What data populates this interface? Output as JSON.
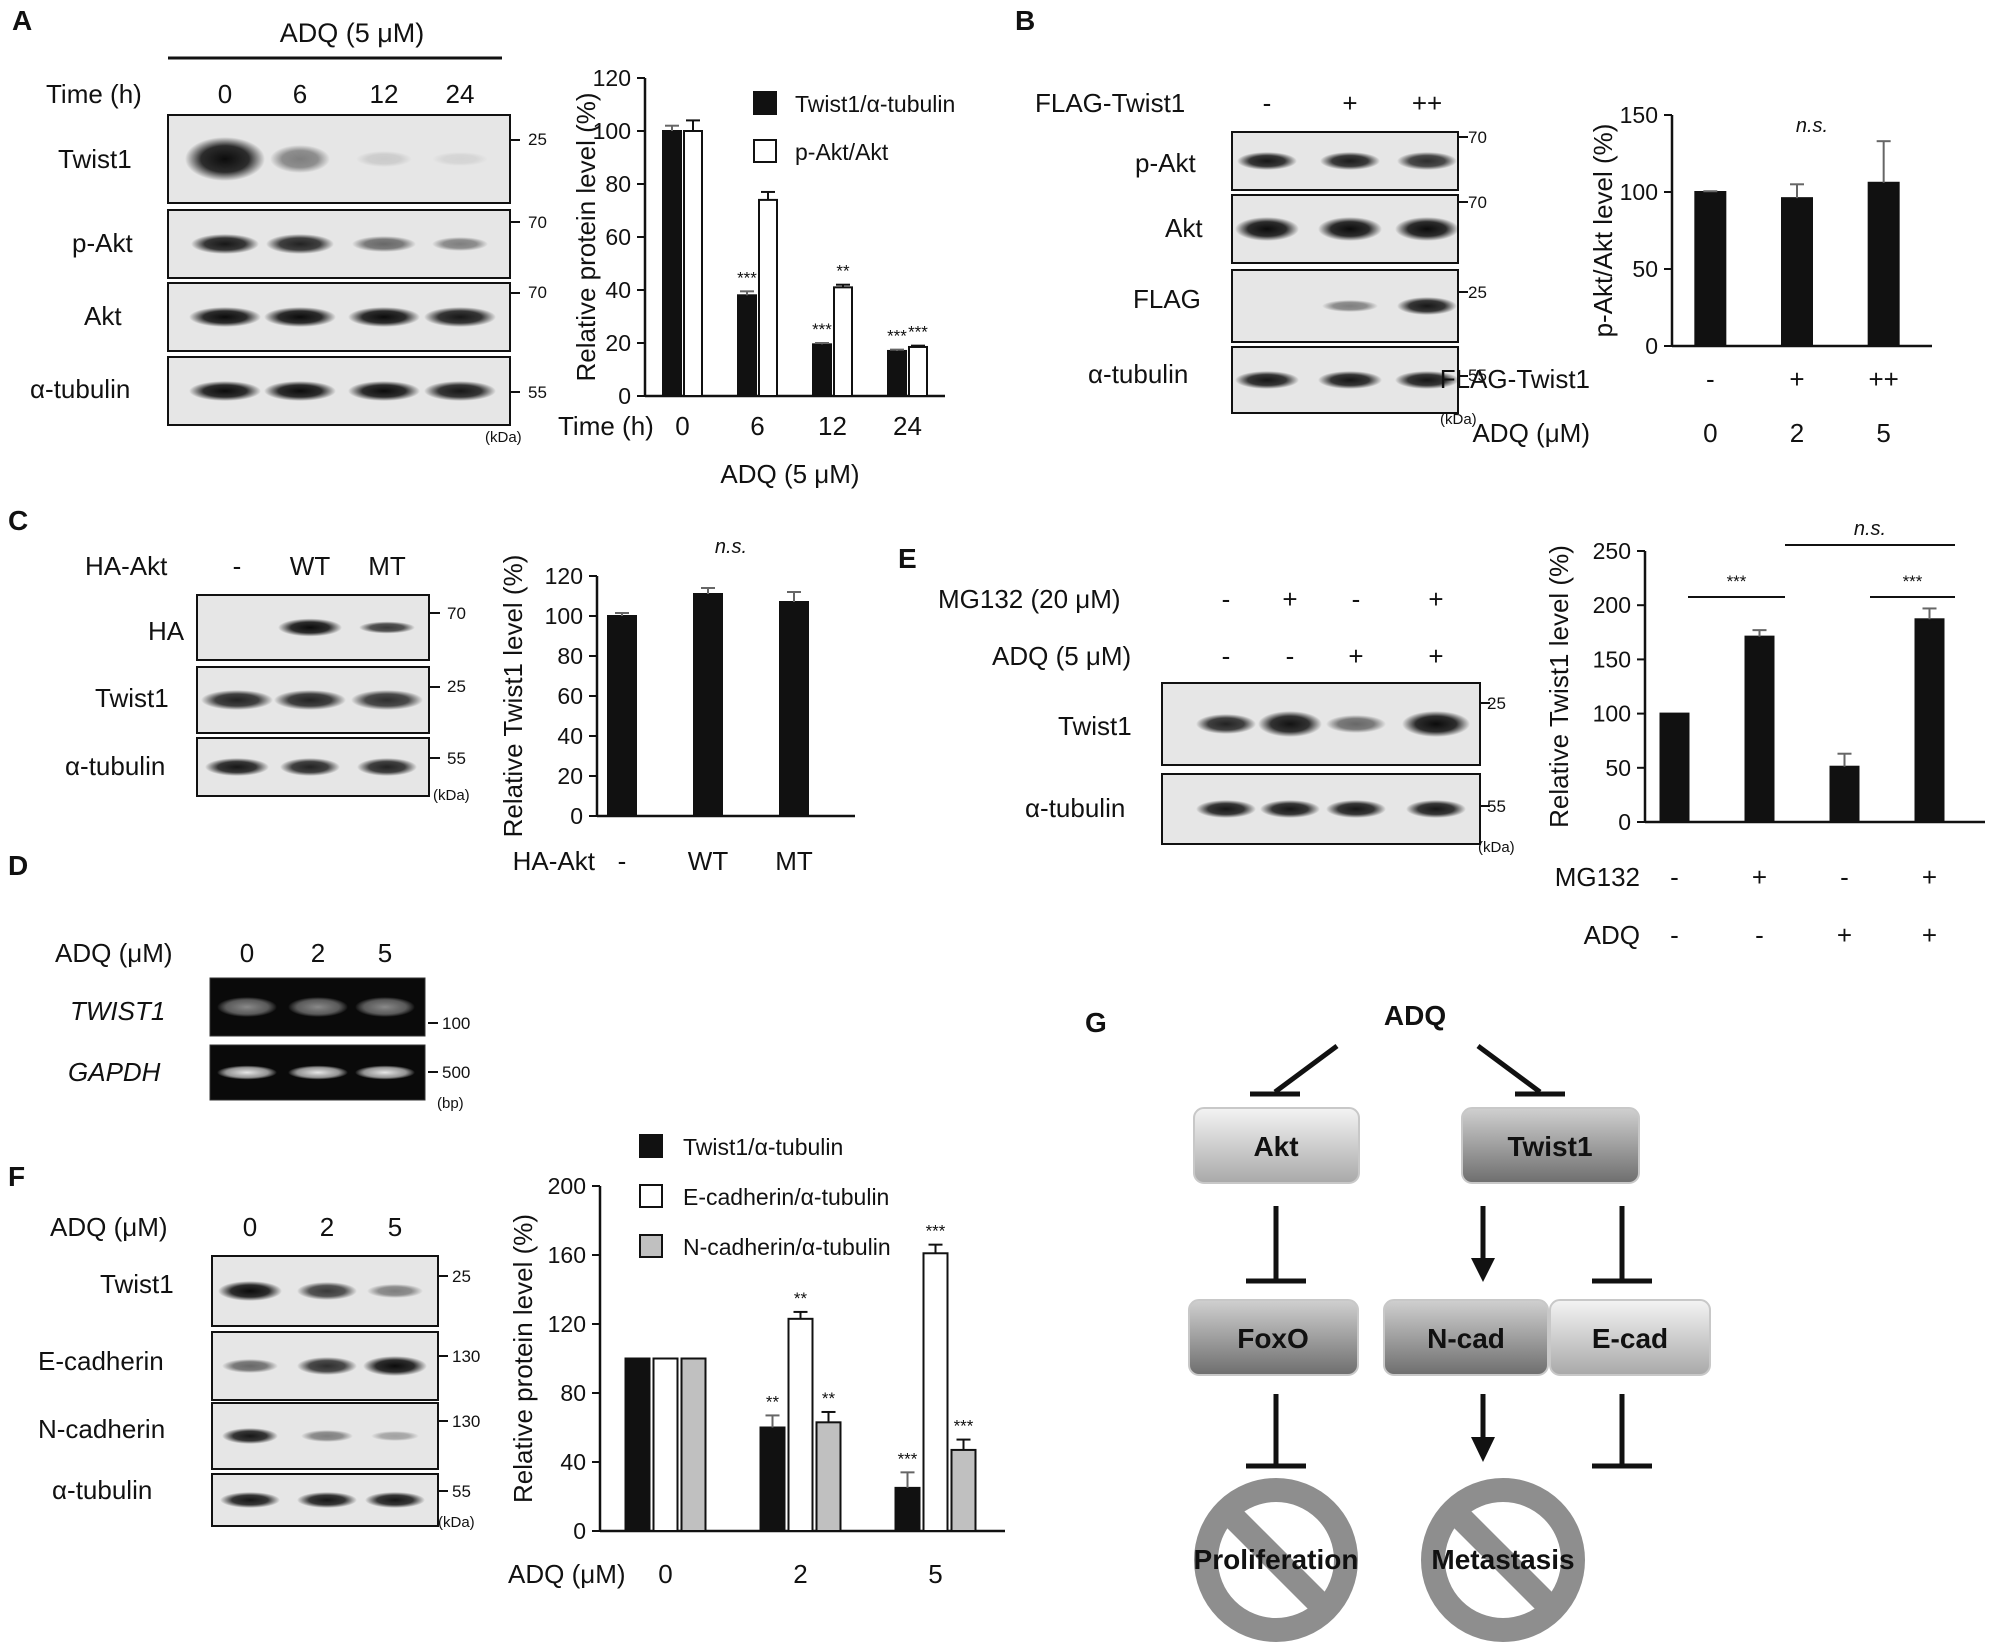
{
  "panels": {
    "A": {
      "letter": "A",
      "blot": {
        "treatment": "ADQ (5 μM)",
        "time_label": "Time (h)",
        "times": [
          "0",
          "6",
          "12",
          "24"
        ],
        "rows": [
          "Twist1",
          "p-Akt",
          "Akt",
          "α-tubulin"
        ],
        "markers": [
          "25",
          "70",
          "70",
          "55"
        ],
        "unit": "(kDa)"
      }
    },
    "B": {
      "letter": "B",
      "blot": {
        "header_label": "FLAG-Twist1",
        "lanes": [
          "-",
          "+",
          "++"
        ],
        "rows": [
          "p-Akt",
          "Akt",
          "FLAG",
          "α-tubulin"
        ],
        "markers": [
          "70",
          "70",
          "25",
          "55"
        ],
        "unit": "(kDa)"
      }
    },
    "C": {
      "letter": "C",
      "blot": {
        "header_label": "HA-Akt",
        "lanes": [
          "-",
          "WT",
          "MT"
        ],
        "rows": [
          "HA",
          "Twist1",
          "α-tubulin"
        ],
        "markers": [
          "70",
          "25",
          "55"
        ],
        "unit": "(kDa)"
      }
    },
    "D": {
      "letter": "D",
      "gel": {
        "header_label": "ADQ (μM)",
        "lanes": [
          "0",
          "2",
          "5"
        ],
        "rows": [
          "TWIST1",
          "GAPDH"
        ],
        "markers": [
          "100",
          "500"
        ],
        "unit": "(bp)"
      }
    },
    "E": {
      "letter": "E",
      "blot": {
        "treatments": [
          "MG132 (20 μM)",
          "ADQ (5 μM)"
        ],
        "mg132_lanes": [
          "-",
          "+",
          "-",
          "+"
        ],
        "adq_lanes": [
          "-",
          "-",
          "+",
          "+"
        ],
        "rows": [
          "Twist1",
          "α-tubulin"
        ],
        "markers": [
          "25",
          "55"
        ],
        "unit": "(kDa)"
      }
    },
    "F": {
      "letter": "F",
      "blot": {
        "header_label": "ADQ (μM)",
        "lanes": [
          "0",
          "2",
          "5"
        ],
        "rows": [
          "Twist1",
          "E-cadherin",
          "N-cadherin",
          "α-tubulin"
        ],
        "markers": [
          "25",
          "130",
          "130",
          "55"
        ],
        "unit": "(kDa)"
      }
    },
    "G": {
      "letter": "G",
      "diagram": {
        "top": "ADQ",
        "nodes": [
          "Akt",
          "Twist1",
          "FoxO",
          "N-cad",
          "E-cad"
        ],
        "outcomes": [
          "Proliferation",
          "Metastasis"
        ]
      }
    }
  },
  "chart_data": [
    {
      "id": "A",
      "type": "bar",
      "categories": [
        "0",
        "6",
        "12",
        "24"
      ],
      "series": [
        {
          "name": "Twist1/α-tubulin",
          "values": [
            100,
            38,
            19.5,
            17
          ],
          "errors": [
            2,
            1.5,
            0.5,
            0.5
          ],
          "sig": [
            "",
            "***",
            "***",
            "***"
          ],
          "fill": "#111111"
        },
        {
          "name": "p-Akt/Akt",
          "values": [
            100,
            74,
            41,
            18.5
          ],
          "errors": [
            4,
            3,
            1,
            0.5
          ],
          "sig": [
            "",
            "",
            "**",
            "***"
          ],
          "fill": "#ffffff"
        }
      ],
      "ylabel": "Relative protein level (%)",
      "xlabel_left": "Time (h)",
      "xlabel_below": "ADQ (5 μM)",
      "ylim": [
        0,
        120
      ],
      "yticks": [
        0,
        20,
        40,
        60,
        80,
        100,
        120
      ],
      "legend": "top-right"
    },
    {
      "id": "B",
      "type": "bar",
      "categories": [
        "-",
        "+",
        "++"
      ],
      "categories_row2": [
        "0",
        "2",
        "5"
      ],
      "series": [
        {
          "name": "p-Akt/Akt",
          "values": [
            100,
            96,
            106
          ],
          "errors": [
            0.5,
            9,
            27
          ],
          "fill": "#111111"
        }
      ],
      "ylabel": "p-Akt/Akt level (%)",
      "row_labels": [
        "FLAG-Twist1",
        "ADQ (μM)"
      ],
      "annotation": "n.s.",
      "ylim": [
        0,
        150
      ],
      "yticks": [
        0,
        50,
        100,
        150
      ]
    },
    {
      "id": "C",
      "type": "bar",
      "categories": [
        "-",
        "WT",
        "MT"
      ],
      "series": [
        {
          "name": "Relative Twist1 level",
          "values": [
            100,
            111,
            107
          ],
          "errors": [
            1.5,
            3,
            5
          ],
          "fill": "#111111"
        }
      ],
      "ylabel": "Relative Twist1 level (%)",
      "row_labels": [
        "HA-Akt"
      ],
      "annotation": "n.s.",
      "ylim": [
        0,
        120
      ],
      "yticks": [
        0,
        20,
        40,
        60,
        80,
        100,
        120
      ]
    },
    {
      "id": "E",
      "type": "bar",
      "categories": [
        "-",
        "+",
        "-",
        "+"
      ],
      "categories_row2": [
        "-",
        "-",
        "+",
        "+"
      ],
      "series": [
        {
          "name": "Relative Twist1 level",
          "values": [
            100,
            171,
            51,
            187
          ],
          "errors": [
            0,
            6,
            12,
            10
          ],
          "fill": "#111111"
        }
      ],
      "ylabel": "Relative Twist1 level (%)",
      "row_labels": [
        "MG132",
        "ADQ"
      ],
      "brackets": [
        {
          "from": 0,
          "to": 1,
          "label": "***"
        },
        {
          "from": 1,
          "to": 3,
          "label": "n.s."
        },
        {
          "from": 2,
          "to": 3,
          "label": "***"
        }
      ],
      "ylim": [
        0,
        250
      ],
      "yticks": [
        0,
        50,
        100,
        150,
        200,
        250
      ]
    },
    {
      "id": "F",
      "type": "bar",
      "categories": [
        "0",
        "2",
        "5"
      ],
      "series": [
        {
          "name": "Twist1/α-tubulin",
          "values": [
            100,
            60,
            25
          ],
          "errors": [
            0,
            7,
            9
          ],
          "sig": [
            "",
            "**",
            "***"
          ],
          "fill": "#111111"
        },
        {
          "name": "E-cadherin/α-tubulin",
          "values": [
            100,
            123,
            161
          ],
          "errors": [
            0,
            4,
            5
          ],
          "sig": [
            "",
            "**",
            "***"
          ],
          "fill": "#ffffff"
        },
        {
          "name": "N-cadherin/α-tubulin",
          "values": [
            100,
            63,
            47
          ],
          "errors": [
            0,
            6,
            6
          ],
          "sig": [
            "",
            "**",
            "***"
          ],
          "fill": "#c0c0c0"
        }
      ],
      "ylabel": "Relative protein level (%)",
      "xlabel_left": "ADQ (μM)",
      "ylim": [
        0,
        200
      ],
      "yticks": [
        0,
        40,
        80,
        120,
        160,
        200
      ],
      "legend": "top"
    }
  ]
}
